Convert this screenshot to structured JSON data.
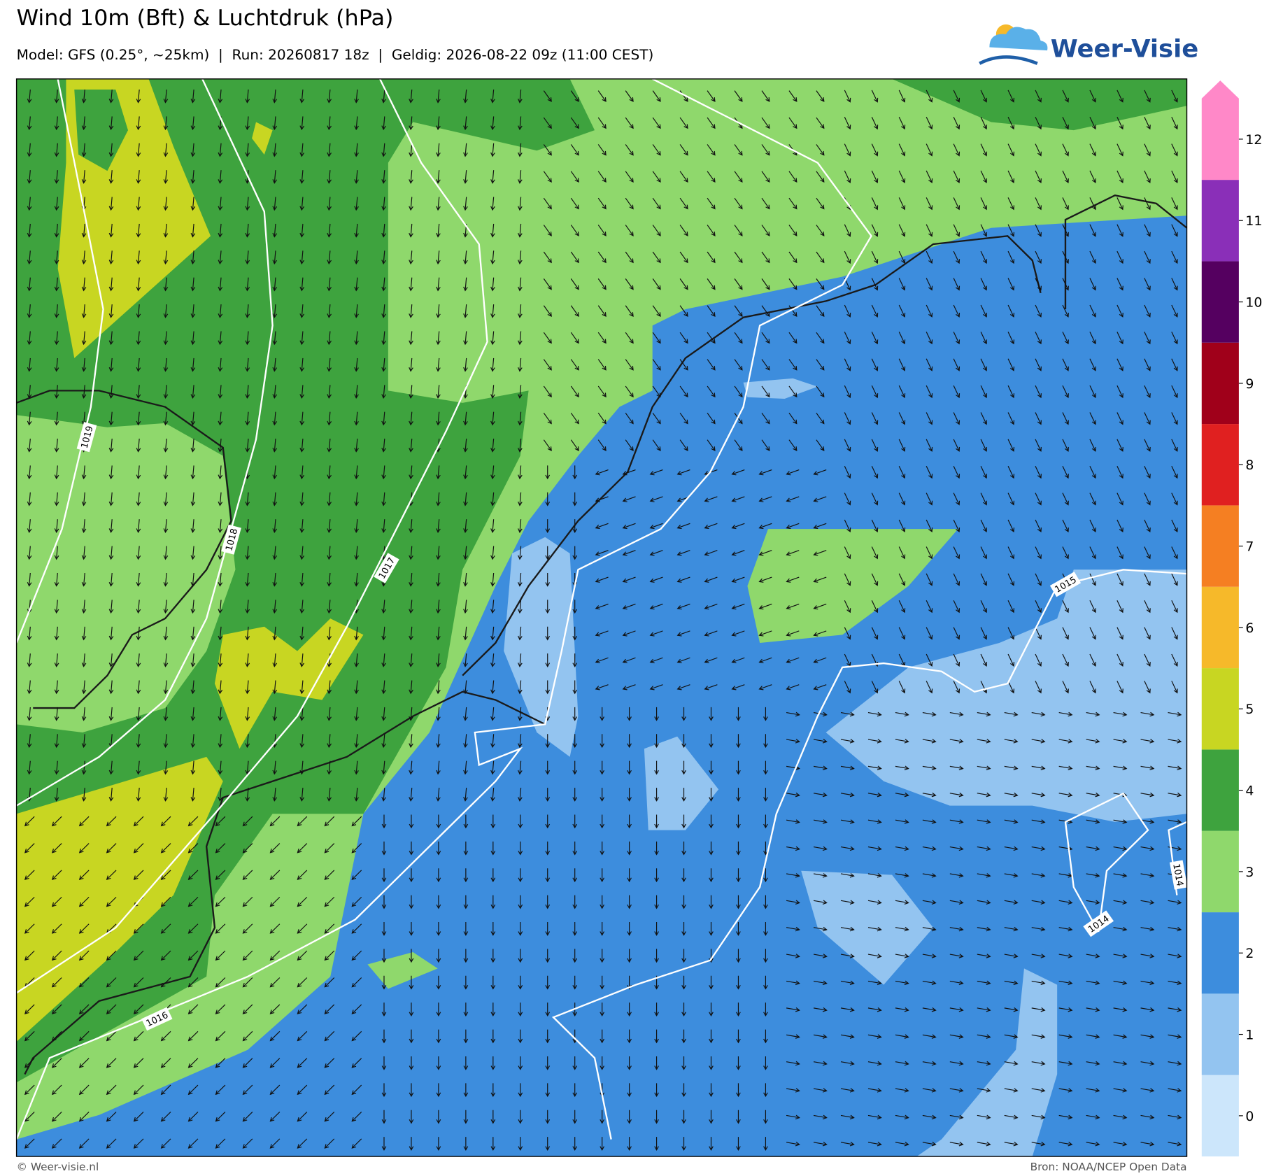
{
  "header": {
    "title": "Wind 10m (Bft) & Luchtdruk (hPa)",
    "subtitle": "Model: GFS (0.25°, ~25km)  |  Run: 20260817 18z  |  Geldig: 2026-08-22 09z (11:00 CEST)"
  },
  "logo": {
    "text": "Weer-Visie"
  },
  "map": {
    "isobar_labels": [
      1019,
      1018,
      1017,
      1016,
      1015,
      1014,
      1014
    ]
  },
  "colorbar": {
    "ticks": [
      0,
      1,
      2,
      3,
      4,
      5,
      6,
      7,
      8,
      9,
      10,
      11,
      12
    ],
    "colors": [
      "#cce6fb",
      "#93c4f0",
      "#3d8ddd",
      "#8fd86c",
      "#3ea33e",
      "#c8d622",
      "#f6b92a",
      "#f57f22",
      "#e02020",
      "#a0001a",
      "#550060",
      "#8a2fb8",
      "#ff88c8"
    ]
  },
  "footer": {
    "left": "© Weer-visie.nl",
    "right": "Bron: NOAA/NCEP Open Data"
  }
}
